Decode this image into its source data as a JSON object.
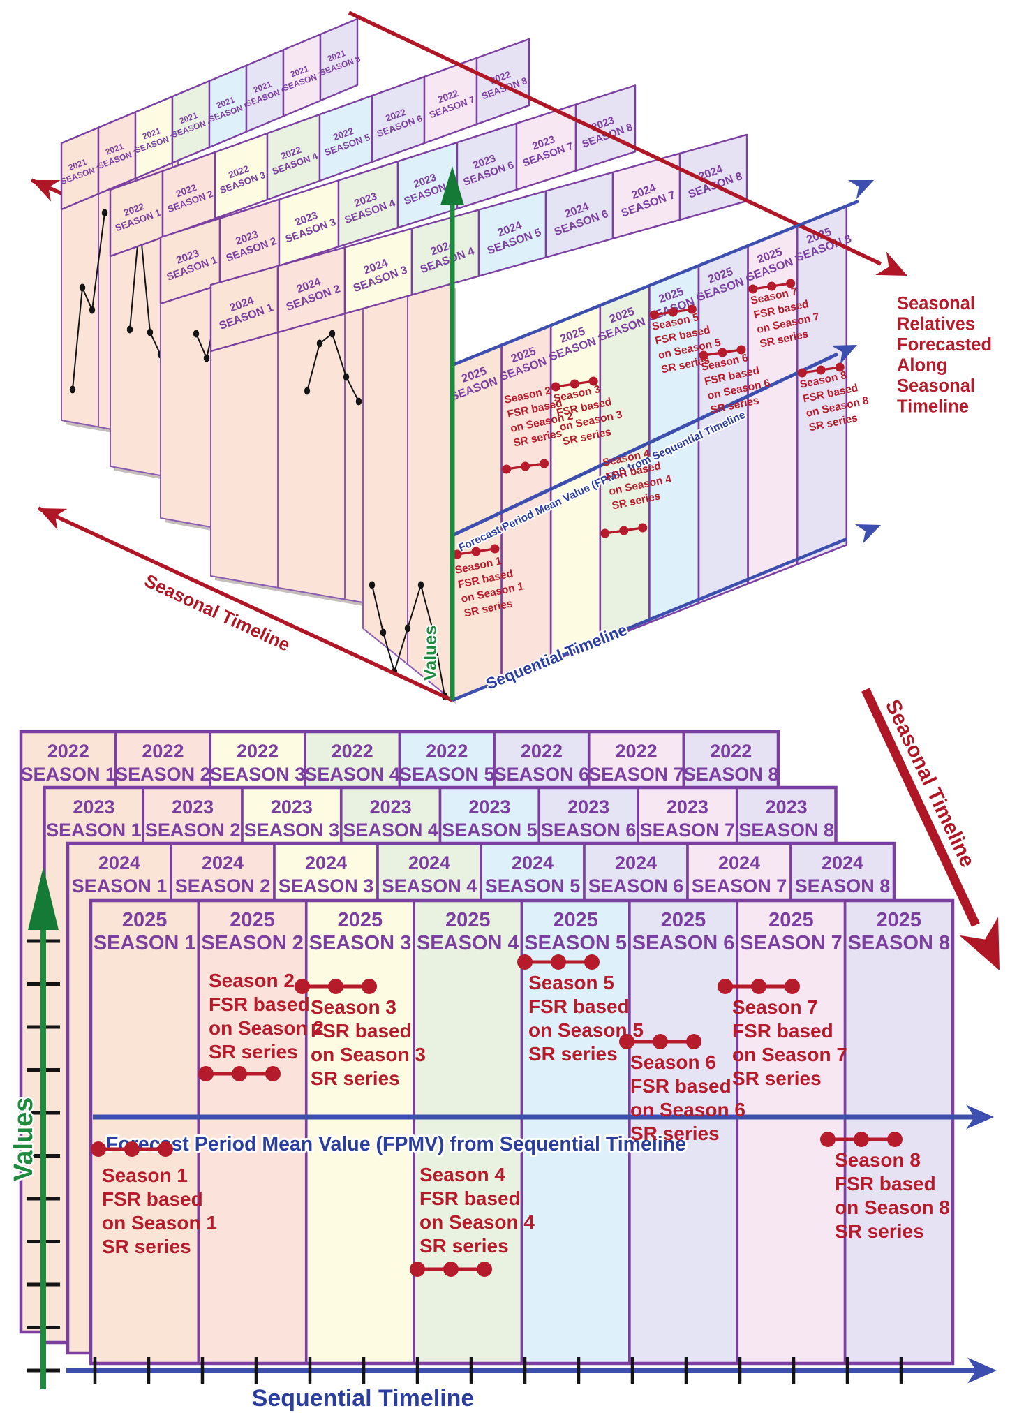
{
  "colors": {
    "season_fills": [
      "#fae4d6",
      "#fbe2da",
      "#fdfbe1",
      "#e9f2e0",
      "#def0fa",
      "#e5e4f4",
      "#f6e7f3",
      "#e7e1f4"
    ],
    "curtain": "#fbe4d7",
    "purple_border": "#7a3fa0",
    "purple_text": "#7b3f9f",
    "red_text": "#b51b2b",
    "red_arrow": "#b01726",
    "blue_arrow": "#3d4fae",
    "blue_text": "#2c3e9d",
    "green": "#1d8a3e",
    "black": "#141414",
    "shadow": "#c5beba"
  },
  "seasons": [
    "SEASON 1",
    "SEASON 2",
    "SEASON 3",
    "SEASON 4",
    "SEASON 5",
    "SEASON 6",
    "SEASON 7",
    "SEASON 8"
  ],
  "figure_top": {
    "back_years": [
      "2021",
      "2022",
      "2023",
      "2024"
    ],
    "front_year": "2025",
    "seasonal_timeline_label": "Seasonal Timeline",
    "sequential_timeline_label": "Sequential Timeline",
    "values_label": "Values",
    "fpmv_label": "Forecast Period Mean Value (FPMV) from Sequential Timeline",
    "side_note_lines": [
      "Seasonal",
      "Relatives",
      "Forecasted",
      "Along",
      "Seasonal",
      "Timeline"
    ]
  },
  "figure_bottom": {
    "back_years": [
      "2022",
      "2023",
      "2024"
    ],
    "front_year": "2025",
    "seasonal_timeline_label": "Seasonal Timeline",
    "sequential_timeline_label": "Sequential Timeline",
    "values_label": "Values",
    "fpmv_label": "Forecast Period Mean Value (FPMV) from Sequential Timeline"
  },
  "fsr_annotations": [
    {
      "lines": [
        "Season 1",
        "FSR based",
        "on Season 1",
        "SR series"
      ]
    },
    {
      "lines": [
        "Season 2",
        "FSR based",
        "on Season 2",
        "SR series"
      ]
    },
    {
      "lines": [
        "Season 3",
        "FSR based",
        "on Season 3",
        "SR series"
      ]
    },
    {
      "lines": [
        "Season 4",
        "FSR based",
        "on Season 4",
        "SR series"
      ]
    },
    {
      "lines": [
        "Season 5",
        "FSR based",
        "on Season 5",
        "SR series"
      ]
    },
    {
      "lines": [
        "Season 6",
        "FSR based",
        "on Season 6",
        "SR series"
      ]
    },
    {
      "lines": [
        "Season 7",
        "FSR based",
        "on Season 7",
        "SR series"
      ]
    },
    {
      "lines": [
        "Season 8",
        "FSR based",
        "on Season 8",
        "SR series"
      ]
    }
  ]
}
